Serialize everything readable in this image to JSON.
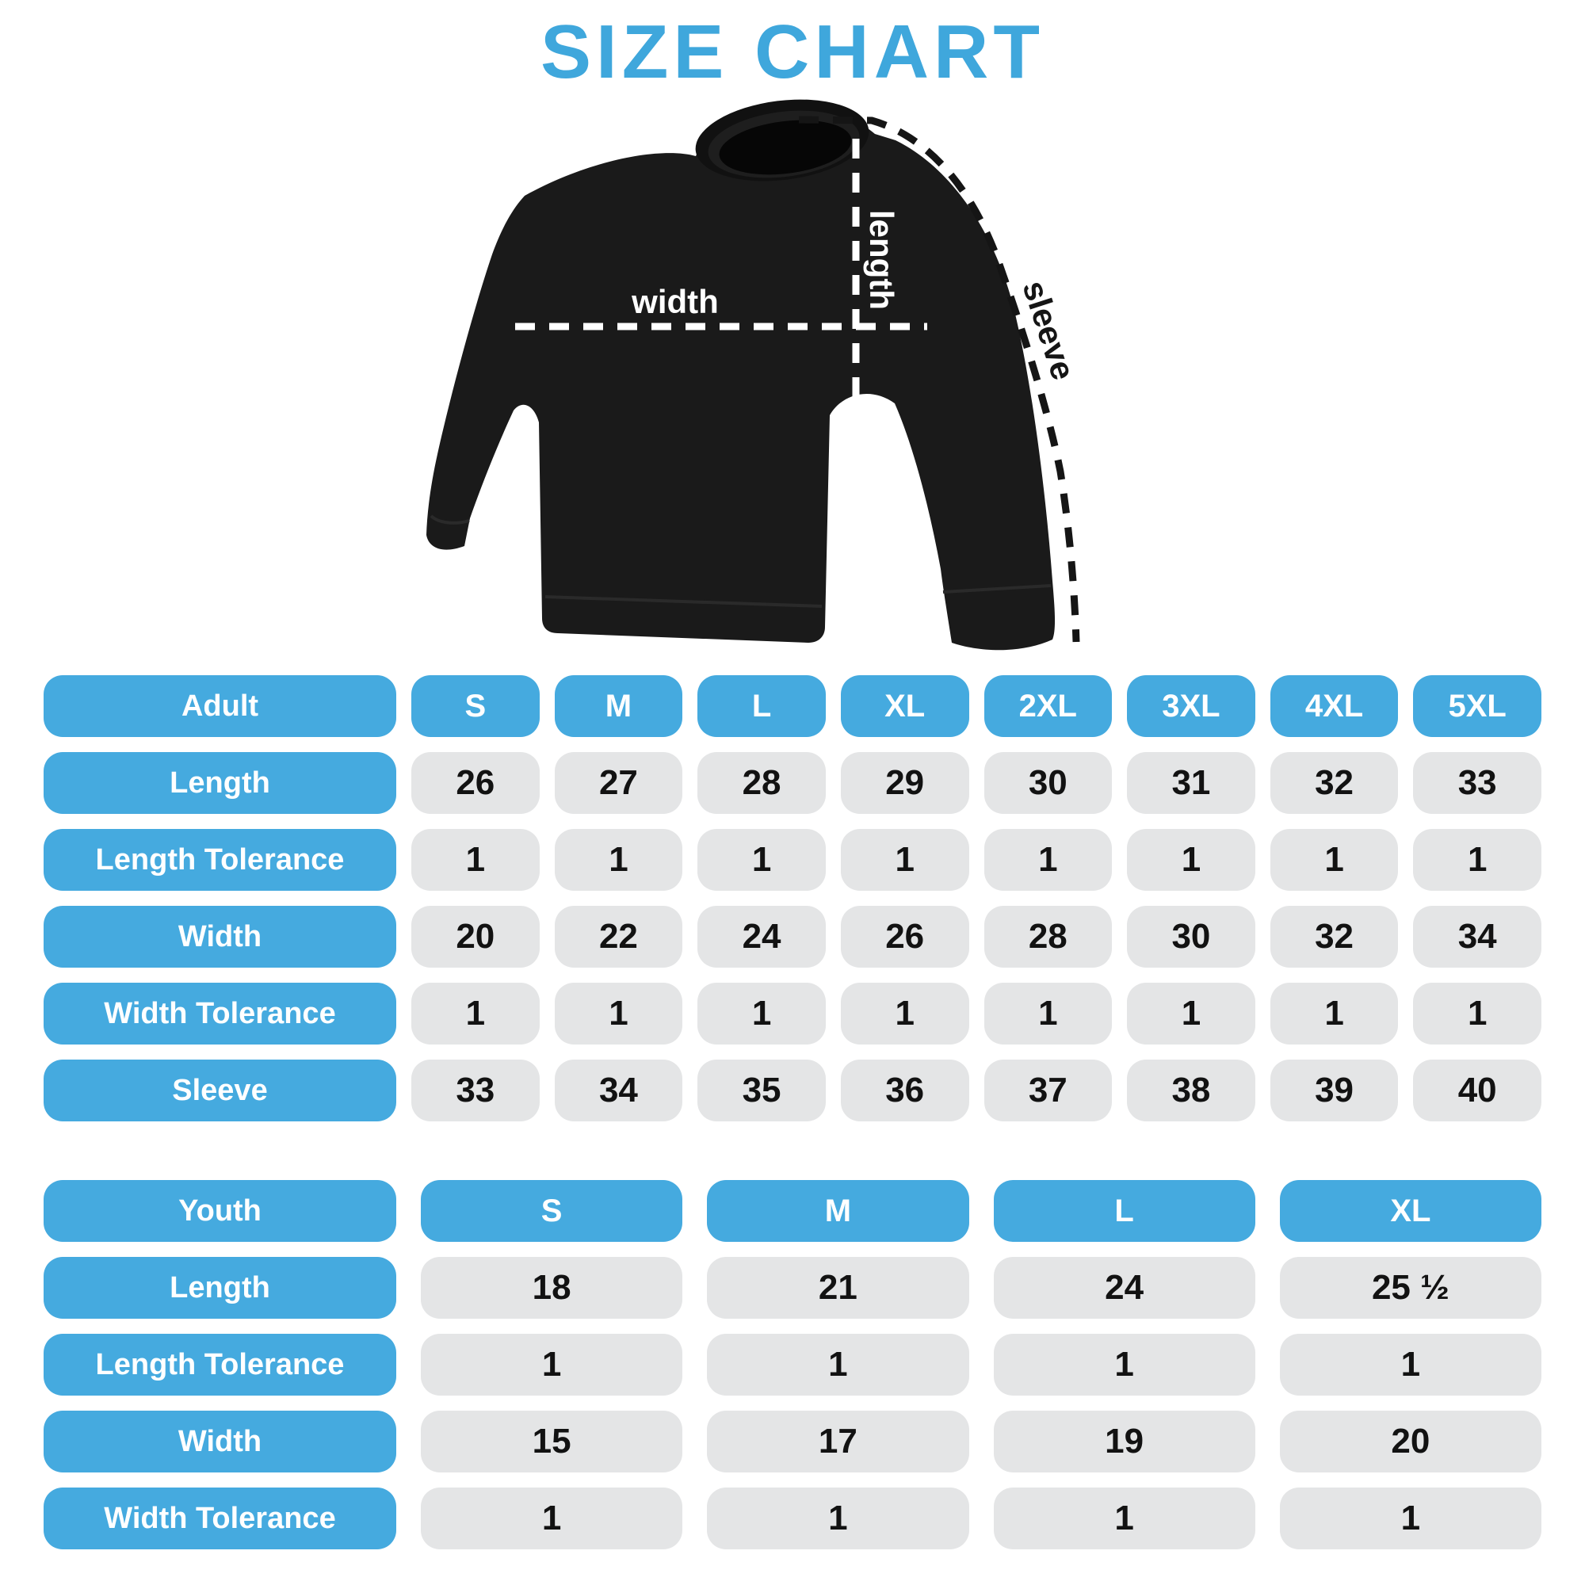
{
  "title": "SIZE CHART",
  "colors": {
    "accent_blue": "#45AADF",
    "title_blue": "#3FA7DC",
    "cell_gray": "#E4E5E6",
    "value_text": "#121212",
    "shirt_black": "#1A1A1A",
    "dash_white": "#FFFFFF",
    "dash_black": "#151515"
  },
  "diagram": {
    "labels": {
      "length": "length",
      "width": "width",
      "sleeve": "sleeve"
    }
  },
  "adult_table": {
    "header": {
      "label": "Adult",
      "sizes": [
        "S",
        "M",
        "L",
        "XL",
        "2XL",
        "3XL",
        "4XL",
        "5XL"
      ]
    },
    "rows": [
      {
        "label": "Length",
        "values": [
          "26",
          "27",
          "28",
          "29",
          "30",
          "31",
          "32",
          "33"
        ]
      },
      {
        "label": "Length Tolerance",
        "values": [
          "1",
          "1",
          "1",
          "1",
          "1",
          "1",
          "1",
          "1"
        ]
      },
      {
        "label": "Width",
        "values": [
          "20",
          "22",
          "24",
          "26",
          "28",
          "30",
          "32",
          "34"
        ]
      },
      {
        "label": "Width Tolerance",
        "values": [
          "1",
          "1",
          "1",
          "1",
          "1",
          "1",
          "1",
          "1"
        ]
      },
      {
        "label": "Sleeve",
        "values": [
          "33",
          "34",
          "35",
          "36",
          "37",
          "38",
          "39",
          "40"
        ]
      }
    ]
  },
  "youth_table": {
    "header": {
      "label": "Youth",
      "sizes": [
        "S",
        "M",
        "L",
        "XL"
      ]
    },
    "rows": [
      {
        "label": "Length",
        "values": [
          "18",
          "21",
          "24",
          "25 ½"
        ]
      },
      {
        "label": "Length Tolerance",
        "values": [
          "1",
          "1",
          "1",
          "1"
        ]
      },
      {
        "label": "Width",
        "values": [
          "15",
          "17",
          "19",
          "20"
        ]
      },
      {
        "label": "Width Tolerance",
        "values": [
          "1",
          "1",
          "1",
          "1"
        ]
      }
    ]
  }
}
